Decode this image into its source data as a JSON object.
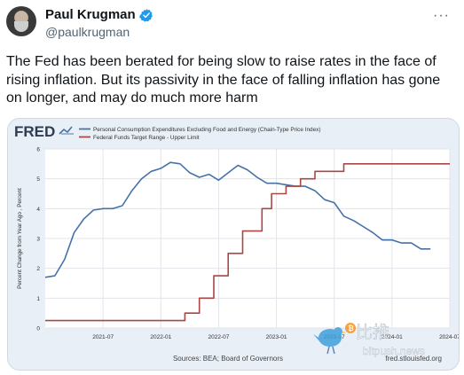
{
  "author": {
    "display_name": "Paul Krugman",
    "handle": "@paulkrugman",
    "verified": true
  },
  "menu_icon": "more-horizontal-icon",
  "tweet_text": "The Fed has been berated for being slow to raise rates in the face of rising inflation. But its passivity in the face of falling inflation has gone on longer, and may do much more harm",
  "fred": {
    "logo": "FRED",
    "source": "Sources: BEA; Board of Governors",
    "url": "fred.stlouisfed.org"
  },
  "watermark": {
    "text_cn": "比推",
    "text_en": "bitpush.news"
  },
  "colors": {
    "pce": "#4572a7",
    "fed": "#aa4643",
    "plot_bg": "#ffffff",
    "media_bg": "#e9eff6"
  },
  "chart_data": {
    "type": "line",
    "ylabel": "Percent Change from Year Ago , Percent",
    "ylim": [
      0,
      6
    ],
    "y_ticks": [
      "0",
      "1",
      "2",
      "3",
      "4",
      "5",
      "6"
    ],
    "x_ticks": [
      "2021-07",
      "2022-01",
      "2022-07",
      "2023-01",
      "2023-07",
      "2024-01",
      "2024-07"
    ],
    "x_tick_values": [
      2021.5,
      2022.0,
      2022.5,
      2023.0,
      2023.5,
      2024.0,
      2024.5
    ],
    "xlim": [
      2021.0,
      2024.5
    ],
    "grid": true,
    "legend_position": "top",
    "series": [
      {
        "name": "Personal Consumption Expenditures Excluding Food and Energy (Chain-Type Price Index)",
        "x": [
          2021.0,
          2021.083,
          2021.167,
          2021.25,
          2021.333,
          2021.417,
          2021.5,
          2021.583,
          2021.667,
          2021.75,
          2021.833,
          2021.917,
          2022.0,
          2022.083,
          2022.167,
          2022.25,
          2022.333,
          2022.417,
          2022.5,
          2022.583,
          2022.667,
          2022.75,
          2022.833,
          2022.917,
          2023.0,
          2023.083,
          2023.167,
          2023.25,
          2023.333,
          2023.417,
          2023.5,
          2023.583,
          2023.667,
          2023.75,
          2023.833,
          2023.917,
          2024.0,
          2024.083,
          2024.167,
          2024.25,
          2024.333
        ],
        "y": [
          1.7,
          1.75,
          2.3,
          3.2,
          3.65,
          3.95,
          4.0,
          4.0,
          4.1,
          4.6,
          5.0,
          5.25,
          5.35,
          5.55,
          5.5,
          5.2,
          5.05,
          5.15,
          4.95,
          5.2,
          5.45,
          5.3,
          5.05,
          4.85,
          4.85,
          4.8,
          4.75,
          4.75,
          4.6,
          4.3,
          4.2,
          3.75,
          3.6,
          3.4,
          3.2,
          2.95,
          2.95,
          2.85,
          2.85,
          2.65,
          2.65
        ]
      },
      {
        "name": "Federal Funds Target Range - Upper Limit",
        "step": true,
        "x": [
          2021.0,
          2022.208,
          2022.333,
          2022.458,
          2022.583,
          2022.708,
          2022.875,
          2022.958,
          2023.083,
          2023.208,
          2023.333,
          2023.583,
          2024.5
        ],
        "y": [
          0.25,
          0.5,
          1.0,
          1.75,
          2.5,
          3.25,
          4.0,
          4.5,
          4.75,
          5.0,
          5.25,
          5.5,
          5.5
        ]
      }
    ]
  }
}
